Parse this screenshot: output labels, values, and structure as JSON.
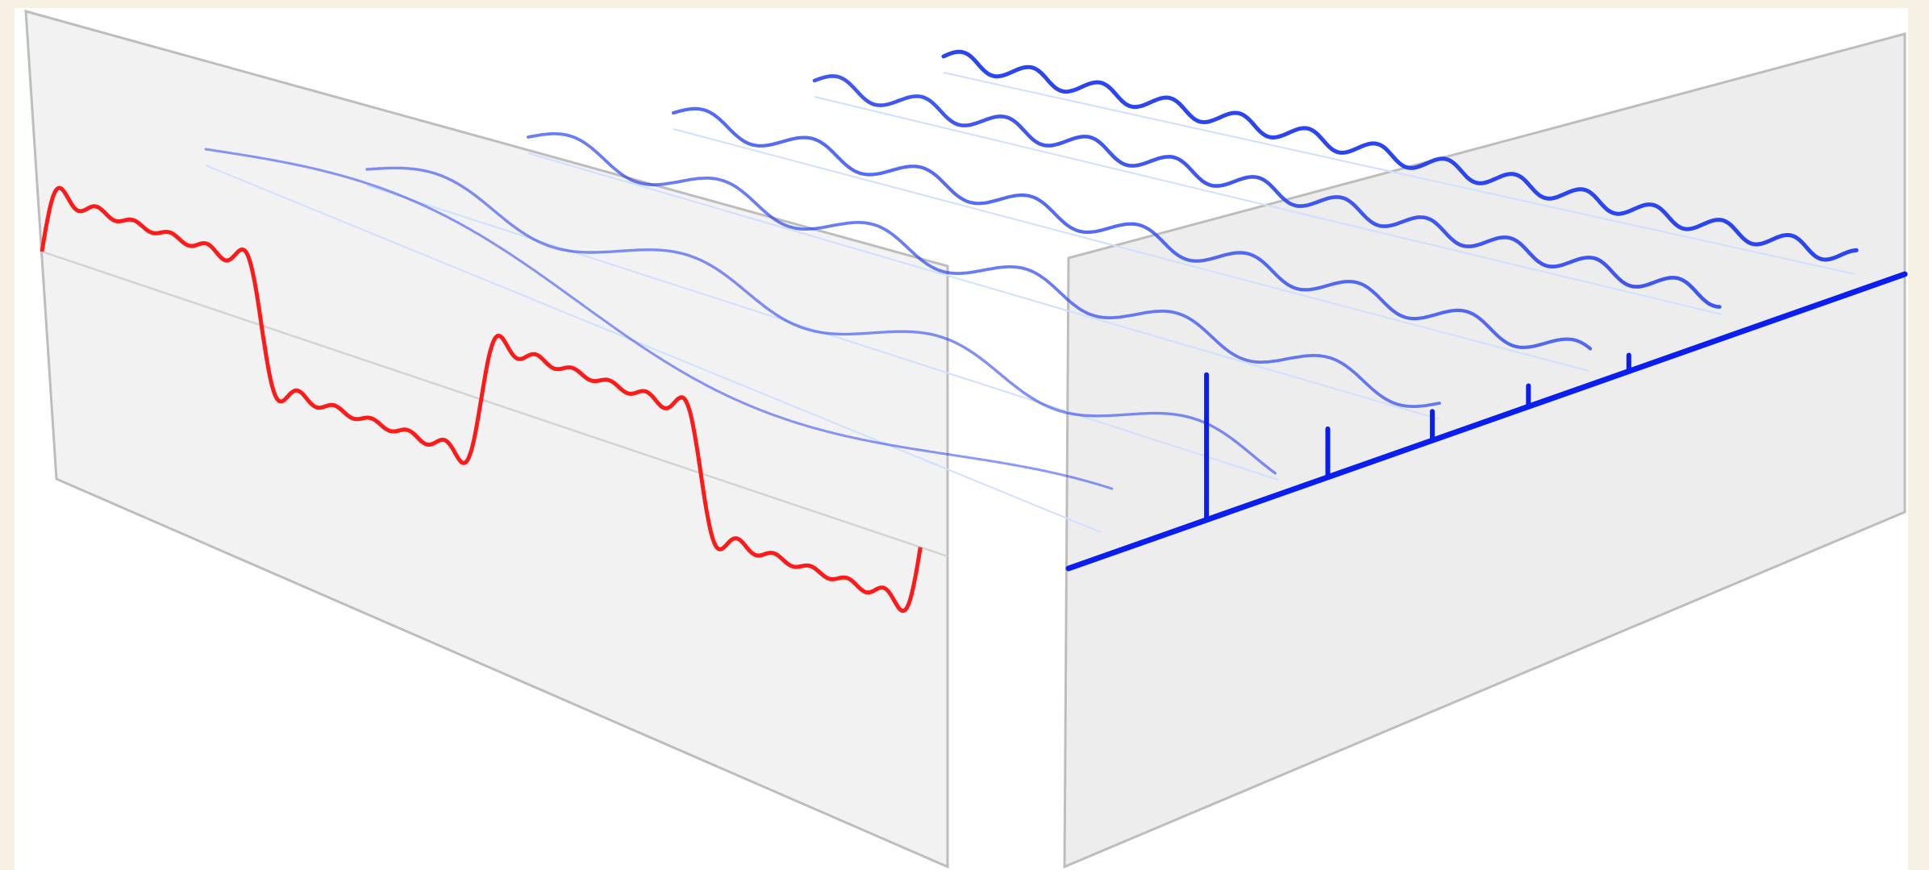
{
  "diagram": {
    "colors": {
      "background": "#f6f0e2",
      "canvas": "#ffffff",
      "time_plane": "#f2f2f2",
      "frequency_plane": "#ededed",
      "plane_edge": "#bdbdbd",
      "square_wave": "#ff1a1a",
      "frequency_axis": "#0a1ef0",
      "harmonic_base": "#2b46f0"
    },
    "time_domain_signal": {
      "shape": "square-wave-partial-fourier-sum",
      "harmonics_summed": [
        1,
        3,
        5,
        7,
        9,
        11
      ],
      "cycles_shown": 2
    },
    "harmonic_components": [
      {
        "harmonic": 1,
        "relative_amplitude": 1.0
      },
      {
        "harmonic": 3,
        "relative_amplitude": 0.333
      },
      {
        "harmonic": 5,
        "relative_amplitude": 0.2
      },
      {
        "harmonic": 7,
        "relative_amplitude": 0.143
      },
      {
        "harmonic": 9,
        "relative_amplitude": 0.111
      },
      {
        "harmonic": 11,
        "relative_amplitude": 0.091
      }
    ],
    "frequency_spectrum": {
      "type": "stem",
      "stems": [
        {
          "harmonic": 1,
          "relative_amplitude": 1.0
        },
        {
          "harmonic": 3,
          "relative_amplitude": 0.333
        },
        {
          "harmonic": 5,
          "relative_amplitude": 0.2
        },
        {
          "harmonic": 7,
          "relative_amplitude": 0.143
        },
        {
          "harmonic": 9,
          "relative_amplitude": 0.111
        }
      ]
    }
  }
}
